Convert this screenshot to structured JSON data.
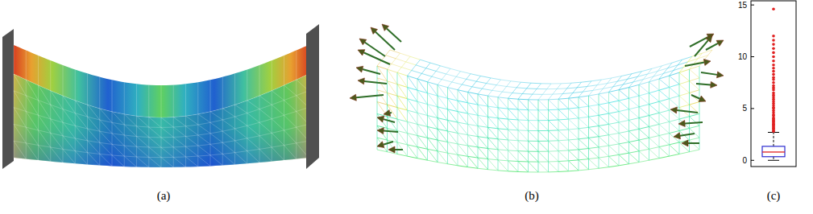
{
  "figure": {
    "panels": [
      {
        "label": "(a)"
      },
      {
        "label": "(b)"
      },
      {
        "label": "(c)"
      }
    ]
  },
  "chart_data": {
    "type": "box",
    "color": "#2a2ad0",
    "ylim": [
      -0.6,
      15.4
    ],
    "yticks": [
      0,
      5,
      10,
      15
    ],
    "box": {
      "whisker_low": 0,
      "q1": 0.35,
      "median": 0.8,
      "q3": 1.35,
      "whisker_high": 2.7
    },
    "outliers": [
      2.8,
      2.9,
      3.0,
      3.1,
      3.2,
      3.3,
      3.4,
      3.5,
      3.6,
      3.7,
      3.8,
      3.9,
      4.0,
      4.1,
      4.3,
      4.4,
      4.6,
      4.8,
      5.0,
      5.1,
      5.3,
      5.5,
      5.7,
      5.9,
      6.1,
      6.3,
      6.5,
      6.8,
      7.0,
      7.2,
      7.5,
      7.8,
      8.0,
      8.3,
      8.6,
      8.9,
      9.2,
      9.6,
      10.0,
      10.4,
      10.8,
      11.2,
      11.6,
      12.0,
      14.6
    ]
  }
}
